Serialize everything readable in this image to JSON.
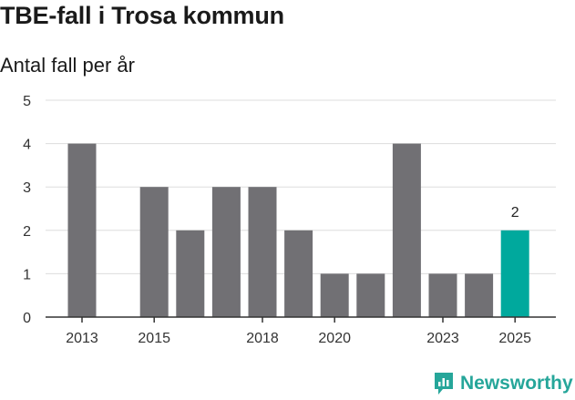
{
  "title": "TBE-fall i Trosa kommun",
  "subtitle": "Antal fall per år",
  "brand": {
    "name": "Newsworthy",
    "icon": "newsworthy-logo-icon"
  },
  "colors": {
    "bar": "#717074",
    "highlight": "#00a99d",
    "grid": "#dddddd",
    "axis": "#333333"
  },
  "chart_data": {
    "type": "bar",
    "title": "",
    "xlabel": "",
    "ylabel": "",
    "x": [
      2013,
      2014,
      2015,
      2016,
      2017,
      2018,
      2019,
      2020,
      2021,
      2022,
      2023,
      2024,
      2025
    ],
    "values": [
      4,
      0,
      3,
      2,
      3,
      3,
      2,
      1,
      1,
      4,
      1,
      1,
      2
    ],
    "x_tick_labels": [
      2013,
      2015,
      2018,
      2020,
      2023,
      2025
    ],
    "ylim": [
      0,
      5
    ],
    "y_ticks": [
      0,
      1,
      2,
      3,
      4,
      5
    ],
    "grid": true,
    "highlight": {
      "x": 2025,
      "label": "2"
    }
  }
}
